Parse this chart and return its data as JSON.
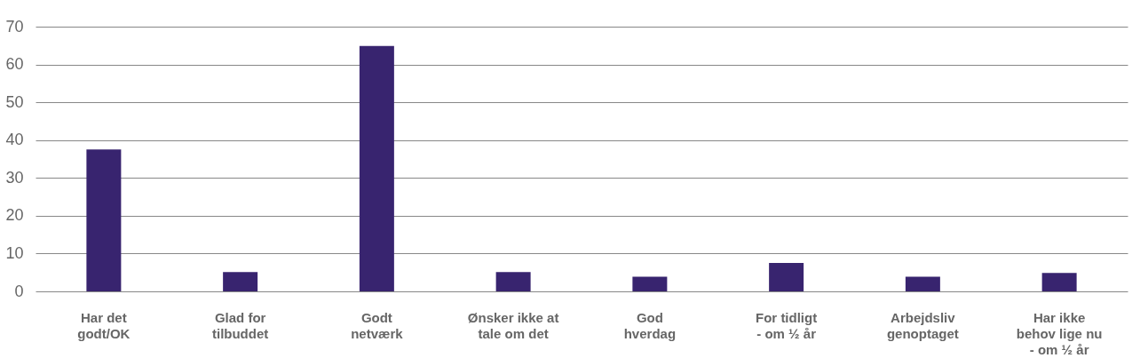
{
  "chart_data": {
    "type": "bar",
    "categories": [
      "Har det\ngodt/OK",
      "Glad for\ntilbuddet",
      "Godt\nnetværk",
      "Ønsker ikke at\ntale om det",
      "God\nhverdag",
      "For tidligt\n- om ½  år",
      "Arbejdsliv\ngenoptaget",
      "Har ikke\nbehov lige nu\n- om ½ år"
    ],
    "values": [
      37.5,
      5.1,
      64.9,
      5.1,
      3.9,
      7.5,
      3.9,
      4.9
    ],
    "color": "#38246f",
    "ylim": [
      0,
      70
    ],
    "yticks": [
      0,
      10,
      20,
      30,
      40,
      50,
      60,
      70
    ],
    "grid": "y"
  }
}
